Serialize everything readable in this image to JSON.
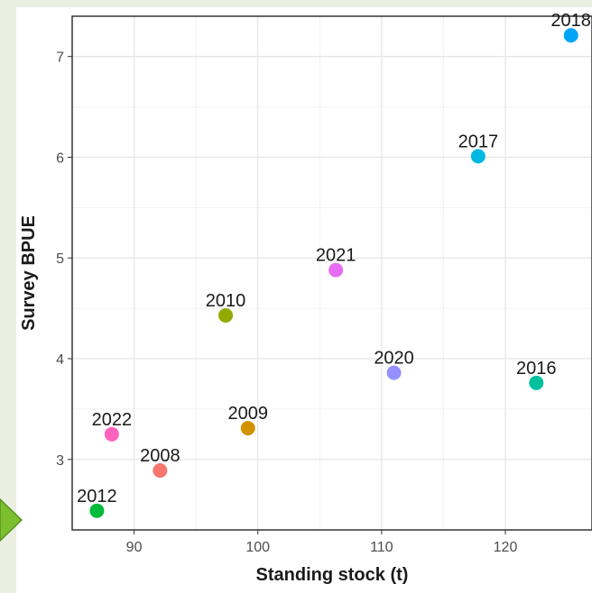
{
  "chart_data": {
    "type": "scatter",
    "title": "",
    "xlabel": "Standing stock (t)",
    "ylabel": "Survey BPUE",
    "xlim": [
      85,
      127
    ],
    "ylim": [
      2.3,
      7.4
    ],
    "xticks": [
      90,
      100,
      110,
      120
    ],
    "yticks": [
      3,
      4,
      5,
      6,
      7
    ],
    "grid": true,
    "legend": "none",
    "points": [
      {
        "label": "2008",
        "x": 92.1,
        "y": 2.89,
        "color": "#F8766D"
      },
      {
        "label": "2009",
        "x": 99.2,
        "y": 3.31,
        "color": "#D39200"
      },
      {
        "label": "2010",
        "x": 97.4,
        "y": 4.43,
        "color": "#93AA00"
      },
      {
        "label": "2012",
        "x": 87.0,
        "y": 2.49,
        "color": "#00BA38"
      },
      {
        "label": "2016",
        "x": 122.5,
        "y": 3.76,
        "color": "#00C19F"
      },
      {
        "label": "2017",
        "x": 117.8,
        "y": 6.01,
        "color": "#00B9E3"
      },
      {
        "label": "2018",
        "x": 125.3,
        "y": 7.21,
        "color": "#00A5F5"
      },
      {
        "label": "2020",
        "x": 111.0,
        "y": 3.86,
        "color": "#9590FF"
      },
      {
        "label": "2021",
        "x": 106.3,
        "y": 4.88,
        "color": "#E76BF3"
      },
      {
        "label": "2022",
        "x": 88.2,
        "y": 3.25,
        "color": "#FF62BC"
      }
    ]
  }
}
